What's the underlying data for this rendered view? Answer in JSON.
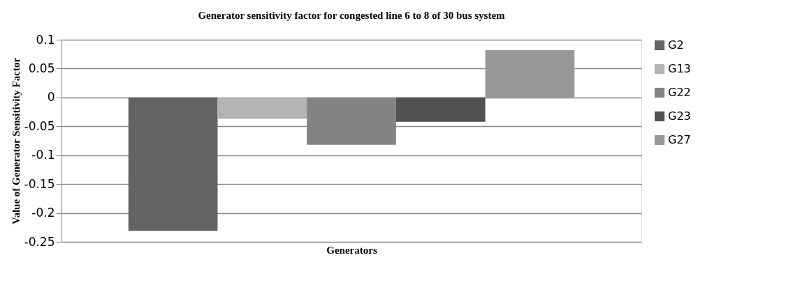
{
  "chart_data": {
    "type": "bar",
    "title": "Generator sensitivity factor for congested  line 6 to 8 of 30 bus system",
    "xlabel": "Generators",
    "ylabel": "Value of Generator Sensitivity Factor",
    "categories": [
      null
    ],
    "series": [
      {
        "name": "G2",
        "color": "#636363",
        "values": [
          -0.231
        ]
      },
      {
        "name": "G13",
        "color": "#b3b3b3",
        "values": [
          -0.037
        ]
      },
      {
        "name": "G22",
        "color": "#838383",
        "values": [
          -0.082
        ]
      },
      {
        "name": "G23",
        "color": "#515151",
        "values": [
          -0.042
        ]
      },
      {
        "name": "G27",
        "color": "#979797",
        "values": [
          0.082
        ]
      }
    ],
    "ylim": [
      -0.25,
      0.1
    ],
    "yticks": [
      -0.25,
      -0.2,
      -0.15,
      -0.1,
      -0.05,
      0,
      0.05,
      0.1
    ],
    "grid": "y",
    "legend": "right"
  }
}
